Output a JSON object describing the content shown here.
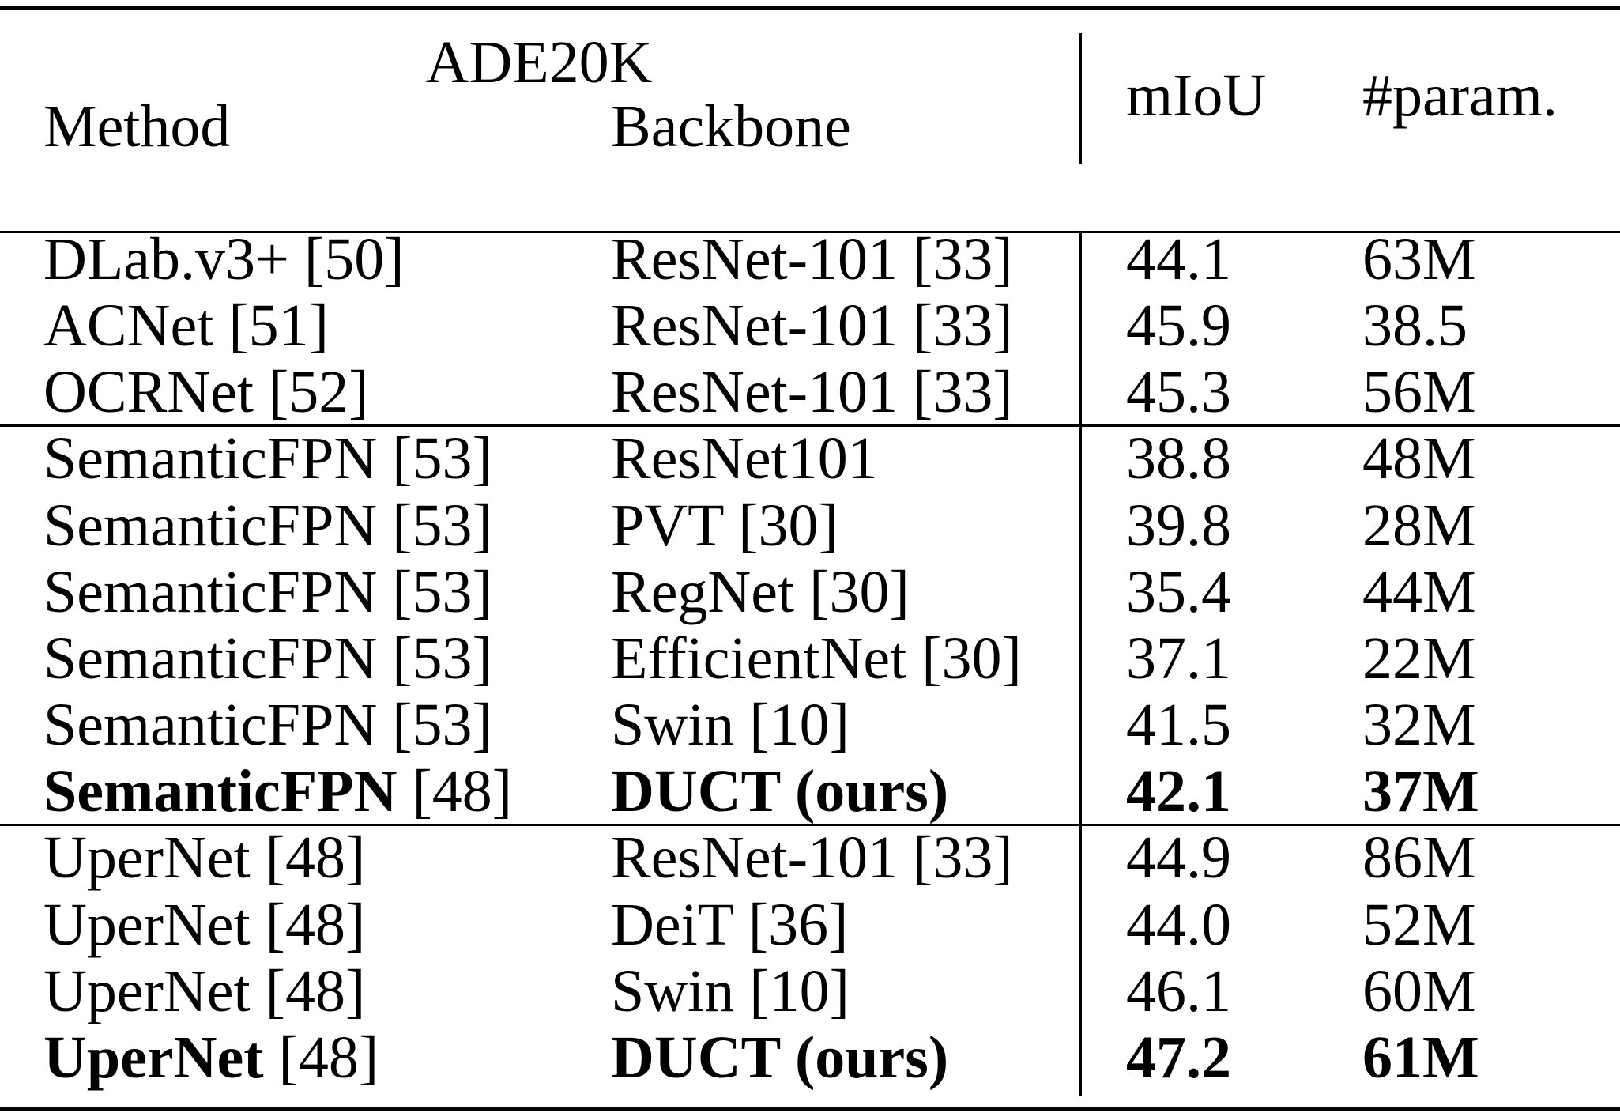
{
  "header": {
    "dataset": "ADE20K",
    "method": "Method",
    "backbone": "Backbone",
    "miou": "mIoU",
    "params": "#param."
  },
  "groups": [
    [
      {
        "method": "DLab.v3+",
        "cite": "[50]",
        "backbone": "ResNet-101 [33]",
        "miou": "44.1",
        "params": "63M",
        "bold": false
      },
      {
        "method": "ACNet",
        "cite": "[51]",
        "backbone": "ResNet-101 [33]",
        "miou": "45.9",
        "params": "38.5",
        "bold": false
      },
      {
        "method": "OCRNet",
        "cite": "[52]",
        "backbone": "ResNet-101 [33]",
        "miou": "45.3",
        "params": "56M",
        "bold": false
      }
    ],
    [
      {
        "method": "SemanticFPN",
        "cite": "[53]",
        "backbone": "ResNet101",
        "miou": "38.8",
        "params": "48M",
        "bold": false
      },
      {
        "method": "SemanticFPN",
        "cite": "[53]",
        "backbone": "PVT [30]",
        "miou": "39.8",
        "params": "28M",
        "bold": false
      },
      {
        "method": "SemanticFPN",
        "cite": "[53]",
        "backbone": "RegNet [30]",
        "miou": "35.4",
        "params": "44M",
        "bold": false
      },
      {
        "method": "SemanticFPN",
        "cite": "[53]",
        "backbone": "EfficientNet [30]",
        "miou": "37.1",
        "params": "22M",
        "bold": false
      },
      {
        "method": "SemanticFPN",
        "cite": "[53]",
        "backbone": "Swin [10]",
        "miou": "41.5",
        "params": "32M",
        "bold": false
      },
      {
        "method": "SemanticFPN",
        "cite": "[48]",
        "backbone": "DUCT (ours)",
        "miou": "42.1",
        "params": "37M",
        "bold": true
      }
    ],
    [
      {
        "method": "UperNet",
        "cite": "[48]",
        "backbone": "ResNet-101 [33]",
        "miou": "44.9",
        "params": "86M",
        "bold": false
      },
      {
        "method": "UperNet",
        "cite": "[48]",
        "backbone": "DeiT [36]",
        "miou": "44.0",
        "params": "52M",
        "bold": false
      },
      {
        "method": "UperNet",
        "cite": "[48]",
        "backbone": "Swin [10]",
        "miou": "46.1",
        "params": "60M",
        "bold": false
      },
      {
        "method": "UperNet",
        "cite": "[48]",
        "backbone": "DUCT (ours)",
        "miou": "47.2",
        "params": "61M",
        "bold": true
      }
    ]
  ]
}
